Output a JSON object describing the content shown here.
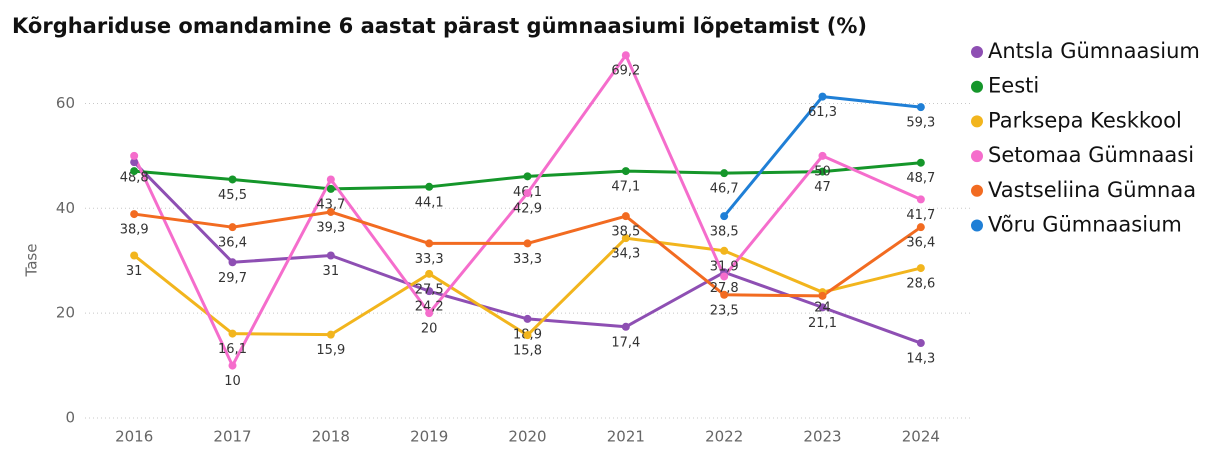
{
  "chart_data": {
    "type": "line",
    "title": "Kõrghariduse omandamine 6 aastat pärast gümnaasiumi lõpetamist (%)",
    "y_label": "Tase",
    "categories": [
      "2016",
      "2017",
      "2018",
      "2019",
      "2020",
      "2021",
      "2022",
      "2023",
      "2024"
    ],
    "ylim": [
      0,
      66
    ],
    "yticks": [
      0,
      20,
      40,
      60
    ],
    "grid": true,
    "legend": "right",
    "series": [
      {
        "name": "Antsla Gümnaasium",
        "color": "#8e4fb3",
        "values": [
          48.8,
          29.7,
          31,
          24.2,
          18.9,
          17.4,
          27.8,
          21.1,
          14.3
        ],
        "value_labels": [
          "48,8",
          "29,7",
          "31",
          "24,2",
          "18,9",
          "17,4",
          "27,8",
          "21,1",
          "14,3"
        ]
      },
      {
        "name": "Eesti",
        "color": "#15962a",
        "values": [
          47.1,
          45.5,
          43.7,
          44.1,
          46.1,
          47.1,
          46.7,
          47,
          48.7
        ],
        "value_labels": [
          null,
          "45,5",
          "43,7",
          "44,1",
          "46,1",
          "47,1",
          "46,7",
          "47",
          "48,7"
        ]
      },
      {
        "name": "Parksepa Keskkool",
        "color": "#f2b51d",
        "values": [
          31,
          16.1,
          15.9,
          27.5,
          15.8,
          34.3,
          31.9,
          24,
          28.6
        ],
        "value_labels": [
          "31",
          "16,1",
          "15,9",
          "27,5",
          "15,8",
          "34,3",
          "31,9",
          "24",
          "28,6"
        ]
      },
      {
        "name": "Setomaa Gümnaasi",
        "color": "#f56dcc",
        "values": [
          50,
          10,
          45.5,
          20,
          42.9,
          69.2,
          27,
          50,
          41.7
        ],
        "value_labels": [
          null,
          "10",
          null,
          "20",
          "42,9",
          "69,2",
          null,
          "50",
          "41,7"
        ]
      },
      {
        "name": "Vastseliina Gümnaa",
        "color": "#f26b21",
        "values": [
          38.9,
          36.4,
          39.3,
          33.3,
          33.3,
          38.5,
          23.5,
          23.3,
          36.4
        ],
        "value_labels": [
          "38,9",
          "36,4",
          "39,3",
          "33,3",
          "33,3",
          "38,5",
          "23,5",
          null,
          "36,4"
        ]
      },
      {
        "name": "Võru Gümnaasium",
        "color": "#1f7fd6",
        "values": [
          null,
          null,
          null,
          null,
          null,
          null,
          38.5,
          61.3,
          59.3
        ],
        "value_labels": [
          null,
          null,
          null,
          null,
          null,
          null,
          "38,5",
          "61,3",
          "59,3"
        ]
      }
    ]
  }
}
